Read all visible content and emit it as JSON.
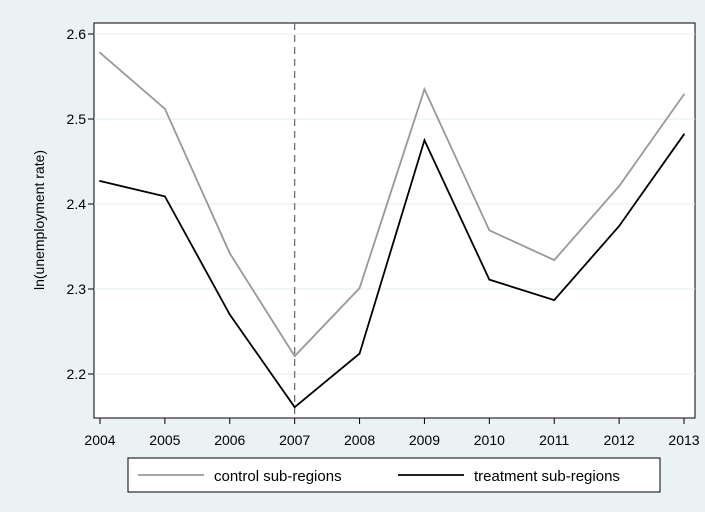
{
  "chart_data": {
    "type": "line",
    "title": "",
    "xlabel": "",
    "ylabel": "ln(unemployment rate)",
    "categories": [
      "2004",
      "2005",
      "2006",
      "2007",
      "2008",
      "2009",
      "2010",
      "2011",
      "2012",
      "2013"
    ],
    "x": [
      2004,
      2005,
      2006,
      2007,
      2008,
      2009,
      2010,
      2011,
      2012,
      2013
    ],
    "xlim": [
      2004,
      2013
    ],
    "ylim": [
      2.15,
      2.62
    ],
    "yticks": [
      2.2,
      2.3,
      2.4,
      2.5,
      2.6
    ],
    "ytick_labels": [
      "2.2",
      "2.3",
      "2.4",
      "2.5",
      "2.6"
    ],
    "vertical_reference_line": {
      "x": 2007,
      "style": "dashed"
    },
    "grid": "horizontal",
    "legend_position": "bottom",
    "series": [
      {
        "name": "control sub-regions",
        "color": "#999999",
        "values": [
          2.578,
          2.512,
          2.342,
          2.221,
          2.301,
          2.535,
          2.369,
          2.334,
          2.421,
          2.529
        ]
      },
      {
        "name": "treatment sub-regions",
        "color": "#000000",
        "values": [
          2.427,
          2.409,
          2.27,
          2.161,
          2.224,
          2.475,
          2.311,
          2.287,
          2.374,
          2.482
        ]
      }
    ]
  }
}
